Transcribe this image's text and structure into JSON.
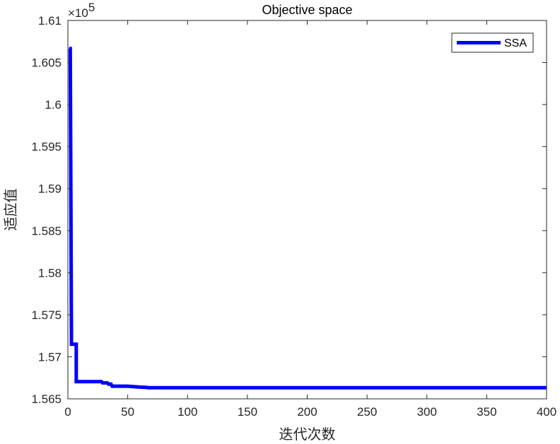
{
  "chart_data": {
    "type": "line",
    "title": "Objective space",
    "xlabel": "迭代次数",
    "ylabel": "适应值",
    "xlim": [
      0,
      400
    ],
    "ylim": [
      156500,
      161000
    ],
    "x_ticks": [
      0,
      50,
      100,
      150,
      200,
      250,
      300,
      350,
      400
    ],
    "y_ticks": [
      156500,
      157000,
      157500,
      158000,
      158500,
      159000,
      159500,
      160000,
      160500,
      161000
    ],
    "y_tick_labels": [
      "1.565",
      "1.57",
      "1.575",
      "1.58",
      "1.585",
      "1.59",
      "1.595",
      "1.6",
      "1.605",
      "1.61"
    ],
    "y_multiplier": {
      "base": "×10",
      "exponent": "5"
    },
    "grid": false,
    "legend": {
      "position": "top-right",
      "entries": [
        "SSA"
      ]
    },
    "series": [
      {
        "name": "SSA",
        "color": "#0000ff",
        "points": [
          [
            1,
            160665
          ],
          [
            2,
            160665
          ],
          [
            3,
            157150
          ],
          [
            4,
            157150
          ],
          [
            7,
            157150
          ],
          [
            7,
            156705
          ],
          [
            28,
            156705
          ],
          [
            29,
            156690
          ],
          [
            33,
            156690
          ],
          [
            34,
            156675
          ],
          [
            36,
            156675
          ],
          [
            37,
            156650
          ],
          [
            50,
            156650
          ],
          [
            55,
            156645
          ],
          [
            60,
            156640
          ],
          [
            66,
            156635
          ],
          [
            67,
            156632
          ],
          [
            400,
            156632
          ]
        ]
      }
    ]
  }
}
